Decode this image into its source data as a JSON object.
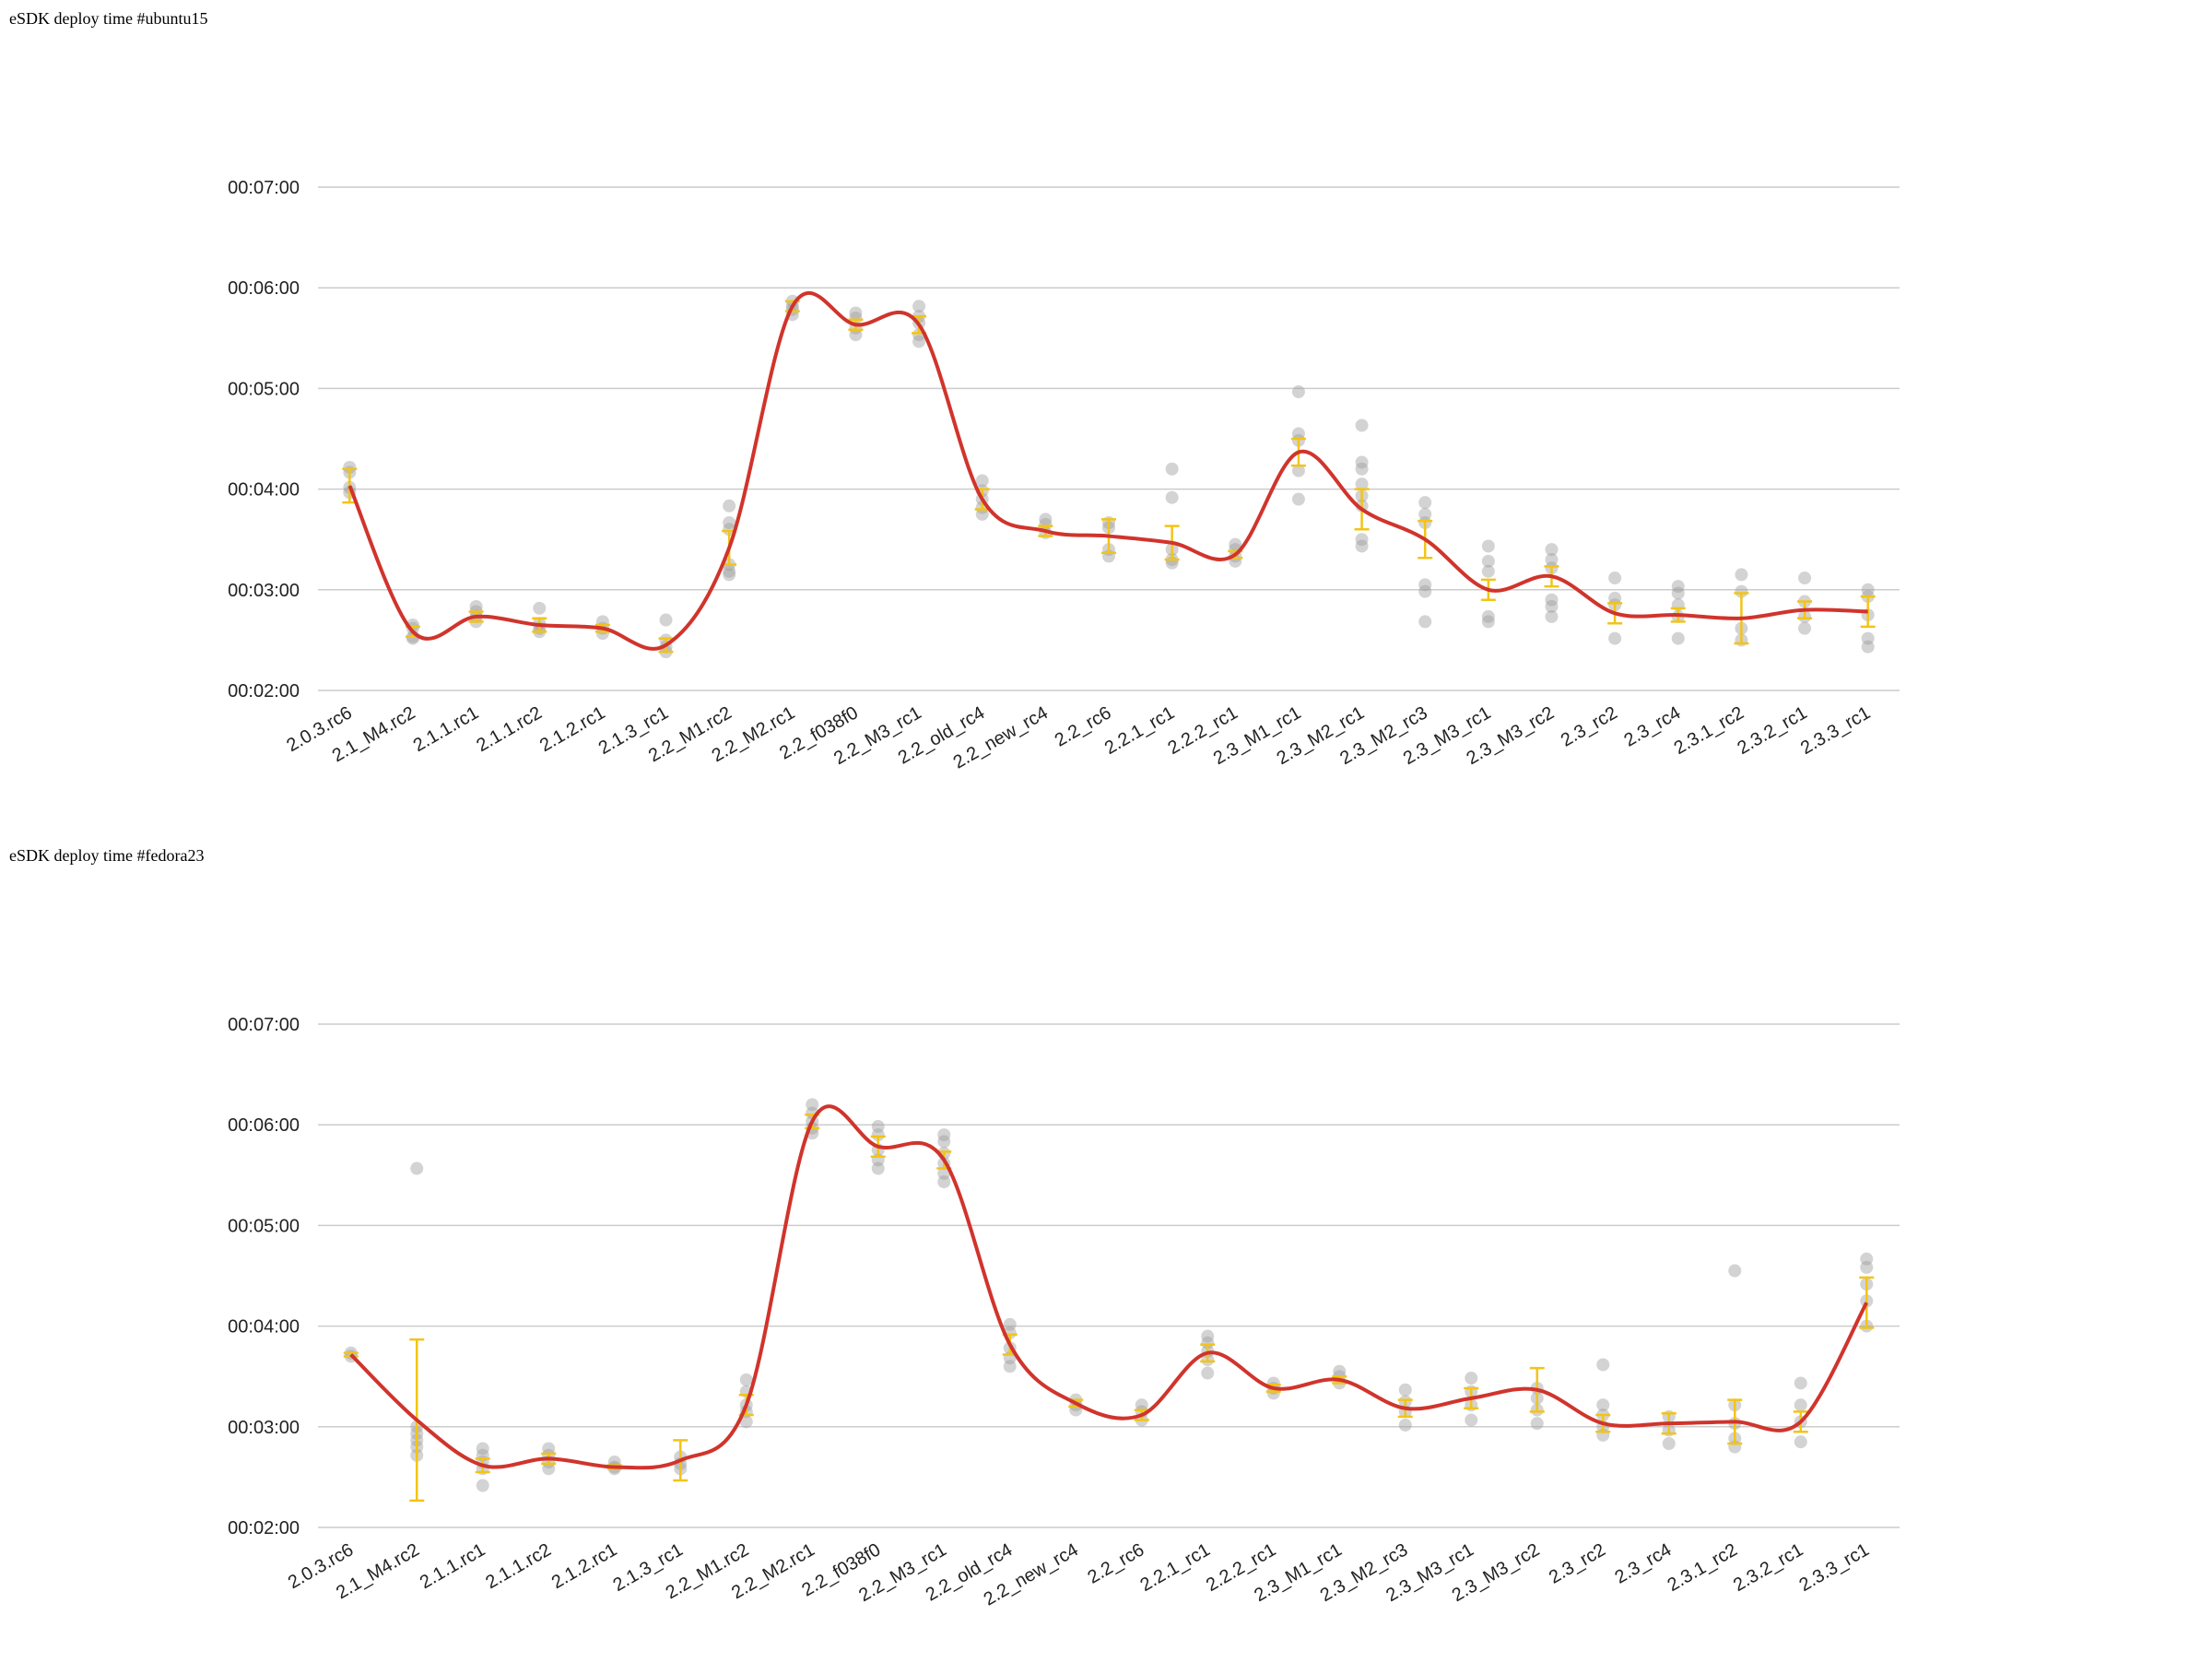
{
  "colors": {
    "line": "#d0342c",
    "point": "#9e9e9e",
    "error": "#f2c418",
    "grid": "#cccccc"
  },
  "chart_data": [
    {
      "type": "scatter",
      "title": "eSDK deploy time #ubuntu15",
      "ylabel": "",
      "xlabel": "",
      "ylim": [
        120,
        420
      ],
      "yticks": [
        {
          "value": 120,
          "label": "00:02:00"
        },
        {
          "value": 180,
          "label": "00:03:00"
        },
        {
          "value": 240,
          "label": "00:04:00"
        },
        {
          "value": 300,
          "label": "00:05:00"
        },
        {
          "value": 360,
          "label": "00:06:00"
        },
        {
          "value": 420,
          "label": "00:07:00"
        }
      ],
      "grid": true,
      "series": [
        {
          "category": "2.0.3.rc6",
          "mean": 242,
          "ci": 10,
          "points": [
            253,
            250,
            241,
            238
          ]
        },
        {
          "category": "2.1_M4.rc2",
          "mean": 155,
          "ci": 3,
          "points": [
            159,
            157,
            152,
            151
          ]
        },
        {
          "category": "2.1.1.rc1",
          "mean": 164,
          "ci": 3,
          "points": [
            170,
            167,
            164,
            161
          ]
        },
        {
          "category": "2.1.1.rc2",
          "mean": 159,
          "ci": 4,
          "points": [
            169,
            160,
            157,
            155
          ]
        },
        {
          "category": "2.1.2.rc1",
          "mean": 157,
          "ci": 2,
          "points": [
            161,
            157,
            154
          ]
        },
        {
          "category": "2.1.3_rc1",
          "mean": 147,
          "ci": 4,
          "points": [
            162,
            150,
            146,
            143
          ]
        },
        {
          "category": "2.2_M1.rc2",
          "mean": 205,
          "ci": 10,
          "points": [
            230,
            220,
            216,
            195,
            191,
            189
          ]
        },
        {
          "category": "2.2_M2.rc1",
          "mean": 349,
          "ci": 3,
          "points": [
            352,
            349,
            347,
            344
          ]
        },
        {
          "category": "2.2_f038f0",
          "mean": 338,
          "ci": 3,
          "points": [
            345,
            342,
            336,
            332
          ]
        },
        {
          "category": "2.2_M3_rc1",
          "mean": 338,
          "ci": 5,
          "points": [
            349,
            343,
            339,
            332,
            328
          ]
        },
        {
          "category": "2.2_old_rc4",
          "mean": 234,
          "ci": 6,
          "points": [
            245,
            239,
            234,
            229,
            225
          ]
        },
        {
          "category": "2.2_new_rc4",
          "mean": 215,
          "ci": 3,
          "points": [
            222,
            219,
            214
          ]
        },
        {
          "category": "2.2_rc6",
          "mean": 212,
          "ci": 10,
          "points": [
            220,
            217,
            204,
            200
          ]
        },
        {
          "category": "2.2.1_rc1",
          "mean": 208,
          "ci": 10,
          "points": [
            252,
            235,
            204,
            198,
            196
          ]
        },
        {
          "category": "2.2.2_rc1",
          "mean": 201,
          "ci": 2,
          "points": [
            207,
            204,
            200,
            197
          ]
        },
        {
          "category": "2.3_M1_rc1",
          "mean": 262,
          "ci": 8,
          "points": [
            298,
            273,
            269,
            251,
            234
          ]
        },
        {
          "category": "2.3_M2_rc1",
          "mean": 228,
          "ci": 12,
          "points": [
            278,
            256,
            252,
            243,
            236,
            230,
            210,
            206
          ]
        },
        {
          "category": "2.3_M2_rc3",
          "mean": 210,
          "ci": 11,
          "points": [
            232,
            225,
            220,
            183,
            179,
            161
          ]
        },
        {
          "category": "2.3_M3_rc1",
          "mean": 180,
          "ci": 6,
          "points": [
            206,
            197,
            191,
            164,
            161
          ]
        },
        {
          "category": "2.3_M3_rc2",
          "mean": 188,
          "ci": 6,
          "points": [
            204,
            198,
            193,
            174,
            170,
            164
          ]
        },
        {
          "category": "2.3_rc2",
          "mean": 166,
          "ci": 6,
          "points": [
            187,
            175,
            171,
            151
          ]
        },
        {
          "category": "2.3_rc4",
          "mean": 165,
          "ci": 4,
          "points": [
            182,
            178,
            171,
            164,
            151
          ]
        },
        {
          "category": "2.3.1_rc2",
          "mean": 163,
          "ci": 15,
          "points": [
            189,
            179,
            157,
            150
          ]
        },
        {
          "category": "2.3.2_rc1",
          "mean": 168,
          "ci": 5,
          "points": [
            187,
            173,
            164,
            157
          ]
        },
        {
          "category": "2.3.3_rc1",
          "mean": 167,
          "ci": 9,
          "points": [
            180,
            176,
            165,
            151,
            146
          ]
        }
      ]
    },
    {
      "type": "scatter",
      "title": "eSDK deploy time #fedora23",
      "ylabel": "",
      "xlabel": "",
      "ylim": [
        120,
        420
      ],
      "yticks": [
        {
          "value": 120,
          "label": "00:02:00"
        },
        {
          "value": 180,
          "label": "00:03:00"
        },
        {
          "value": 240,
          "label": "00:04:00"
        },
        {
          "value": 300,
          "label": "00:05:00"
        },
        {
          "value": 360,
          "label": "00:06:00"
        },
        {
          "value": 420,
          "label": "00:07:00"
        }
      ],
      "grid": true,
      "series": [
        {
          "category": "2.0.3.rc6",
          "mean": 223,
          "ci": 1,
          "points": [
            224,
            222
          ]
        },
        {
          "category": "2.1_M4.rc2",
          "mean": 184,
          "ci": 48,
          "points": [
            334,
            180,
            176,
            172,
            168,
            163
          ]
        },
        {
          "category": "2.1.1.rc1",
          "mean": 157,
          "ci": 4,
          "points": [
            167,
            163,
            159,
            155,
            145
          ]
        },
        {
          "category": "2.1.1.rc2",
          "mean": 161,
          "ci": 3,
          "points": [
            167,
            163,
            159,
            155
          ]
        },
        {
          "category": "2.1.2.rc1",
          "mean": 156,
          "ci": 1,
          "points": [
            159,
            156,
            155
          ]
        },
        {
          "category": "2.1.3_rc1",
          "mean": 160,
          "ci": 12,
          "points": [
            162,
            158,
            155
          ]
        },
        {
          "category": "2.2_M1.rc2",
          "mean": 193,
          "ci": 6,
          "points": [
            208,
            201,
            193,
            189,
            183
          ]
        },
        {
          "category": "2.2_M2.rc1",
          "mean": 362,
          "ci": 4,
          "points": [
            372,
            367,
            362,
            358,
            355
          ]
        },
        {
          "category": "2.2_f038f0",
          "mean": 347,
          "ci": 6,
          "points": [
            359,
            354,
            345,
            339,
            334
          ]
        },
        {
          "category": "2.2_M3_rc1",
          "mean": 339,
          "ci": 5,
          "points": [
            354,
            350,
            343,
            337,
            331,
            326
          ]
        },
        {
          "category": "2.2_old_rc4",
          "mean": 229,
          "ci": 6,
          "points": [
            241,
            236,
            227,
            221,
            216
          ]
        },
        {
          "category": "2.2_new_rc4",
          "mean": 194,
          "ci": 2,
          "points": [
            196,
            193,
            190
          ]
        },
        {
          "category": "2.2_rc6",
          "mean": 187,
          "ci": 3,
          "points": [
            193,
            189,
            184
          ]
        },
        {
          "category": "2.2.1_rc1",
          "mean": 224,
          "ci": 5,
          "points": [
            234,
            230,
            225,
            220,
            212
          ]
        },
        {
          "category": "2.2.2_rc1",
          "mean": 203,
          "ci": 2,
          "points": [
            206,
            203,
            200
          ]
        },
        {
          "category": "2.3_M1_rc1",
          "mean": 208,
          "ci": 2,
          "points": [
            213,
            210,
            206
          ]
        },
        {
          "category": "2.3_M2_rc3",
          "mean": 191,
          "ci": 5,
          "points": [
            202,
            195,
            189,
            181
          ]
        },
        {
          "category": "2.3_M3_rc1",
          "mean": 197,
          "ci": 6,
          "points": [
            209,
            201,
            193,
            184
          ]
        },
        {
          "category": "2.3_M3_rc2",
          "mean": 202,
          "ci": 13,
          "points": [
            203,
            197,
            190,
            182
          ]
        },
        {
          "category": "2.3_rc2",
          "mean": 182,
          "ci": 5,
          "points": [
            217,
            193,
            187,
            180,
            175
          ]
        },
        {
          "category": "2.3_rc4",
          "mean": 182,
          "ci": 6,
          "points": [
            186,
            178,
            170
          ]
        },
        {
          "category": "2.3.1_rc2",
          "mean": 183,
          "ci": 13,
          "points": [
            273,
            193,
            182,
            173,
            168
          ]
        },
        {
          "category": "2.3.2_rc1",
          "mean": 183,
          "ci": 6,
          "points": [
            206,
            193,
            183,
            171
          ]
        },
        {
          "category": "2.3.3_rc1",
          "mean": 254,
          "ci": 15,
          "points": [
            280,
            275,
            265,
            255,
            240
          ]
        }
      ]
    }
  ]
}
